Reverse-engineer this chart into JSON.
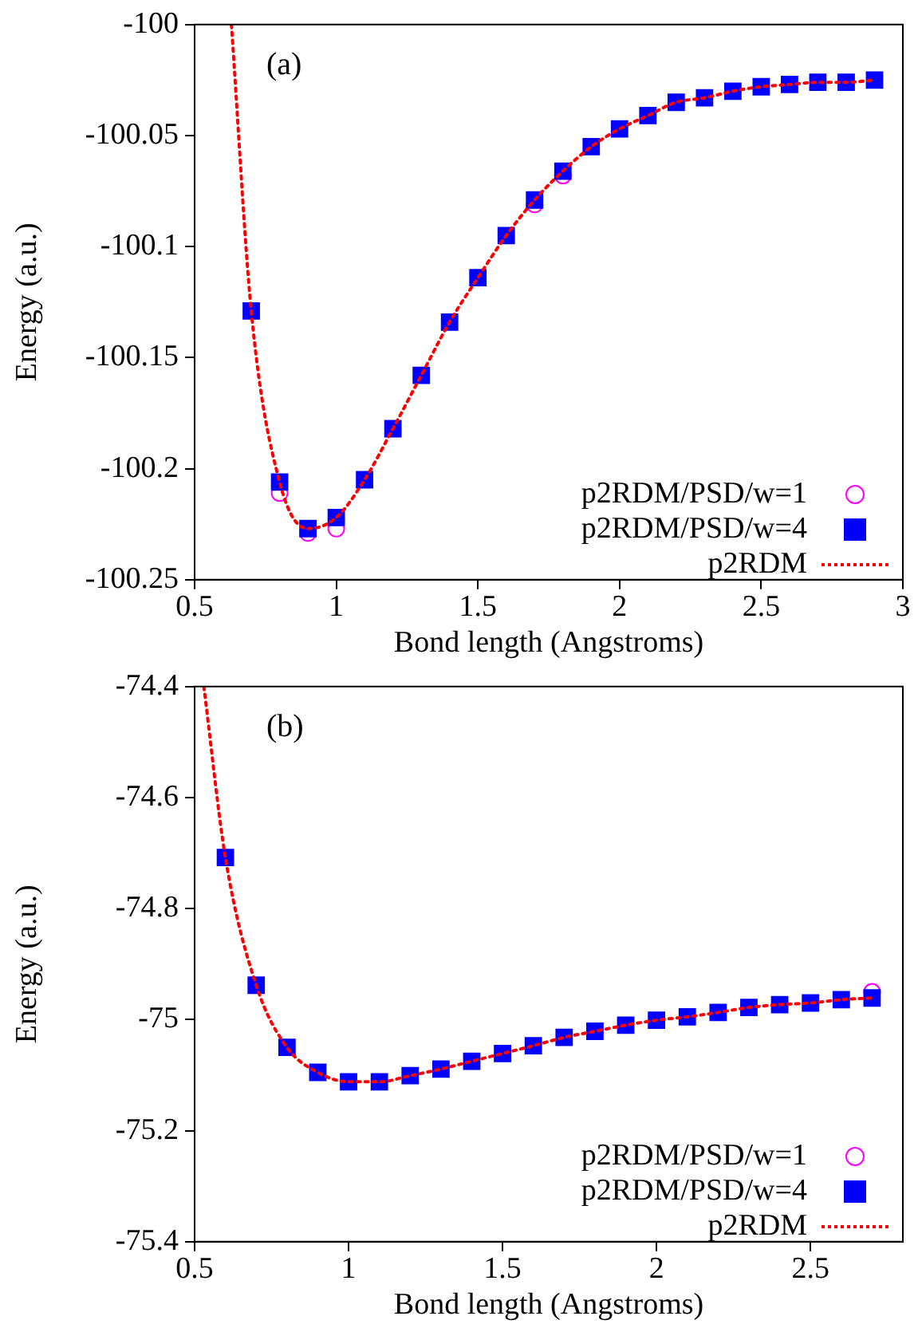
{
  "chart_data": [
    {
      "type": "scatter",
      "xlabel": "Bond length (Angstroms)",
      "ylabel": "Energy (a.u.)",
      "annotations": [
        "(a)"
      ],
      "legend": "bottom right",
      "grid": false,
      "xlim": [
        0.5,
        3
      ],
      "xticks": [
        0.5,
        1,
        1.5,
        2,
        2.5,
        3
      ],
      "ylim": [
        -100.25,
        -100
      ],
      "yticks": [
        -100.25,
        -100.2,
        -100.15,
        -100.1,
        -100.05,
        -100
      ],
      "x": [
        0.7,
        0.8,
        0.9,
        1.0,
        1.1,
        1.2,
        1.3,
        1.4,
        1.5,
        1.6,
        1.7,
        1.8,
        1.9,
        2.0,
        2.1,
        2.2,
        2.3,
        2.4,
        2.5,
        2.6,
        2.7,
        2.8,
        2.9
      ],
      "series": [
        {
          "name": "p2RDM/PSD/w=1",
          "type": "scatter",
          "marker": "circle",
          "color": "#ff00ff",
          "values": [
            null,
            -100.211,
            -100.229,
            -100.227,
            null,
            null,
            null,
            null,
            null,
            null,
            -100.081,
            -100.068,
            null,
            null,
            null,
            null,
            null,
            null,
            null,
            null,
            null,
            null,
            null
          ]
        },
        {
          "name": "p2RDM/PSD/w=4",
          "type": "scatter",
          "marker": "square",
          "color": "#0000ff",
          "values": [
            -100.129,
            -100.206,
            -100.227,
            -100.222,
            -100.205,
            -100.182,
            -100.158,
            -100.134,
            -100.114,
            -100.095,
            -100.079,
            -100.066,
            -100.055,
            -100.047,
            -100.041,
            -100.035,
            -100.033,
            -100.03,
            -100.028,
            -100.027,
            -100.026,
            -100.026,
            -100.025
          ]
        },
        {
          "name": "p2RDM",
          "type": "line",
          "marker": "none",
          "line_style": "dotted",
          "color": "#ff0000",
          "x": [
            0.63,
            0.7,
            0.8,
            0.9,
            1.0,
            1.1,
            1.2,
            1.3,
            1.4,
            1.5,
            1.6,
            1.7,
            1.8,
            1.9,
            2.0,
            2.1,
            2.2,
            2.3,
            2.4,
            2.5,
            2.6,
            2.7,
            2.8,
            2.9
          ],
          "values": [
            -100,
            -100.129,
            -100.206,
            -100.227,
            -100.222,
            -100.205,
            -100.182,
            -100.158,
            -100.134,
            -100.114,
            -100.095,
            -100.079,
            -100.066,
            -100.055,
            -100.047,
            -100.041,
            -100.035,
            -100.033,
            -100.03,
            -100.028,
            -100.027,
            -100.026,
            -100.026,
            -100.025
          ]
        }
      ]
    },
    {
      "type": "scatter",
      "xlabel": "Bond length (Angstroms)",
      "ylabel": "Energy (a.u.)",
      "annotations": [
        "(b)"
      ],
      "legend": "bottom right",
      "grid": false,
      "xlim": [
        0.5,
        2.8
      ],
      "xticks": [
        0.5,
        1,
        1.5,
        2,
        2.5
      ],
      "ylim": [
        -75.4,
        -74.4
      ],
      "yticks": [
        -75.4,
        -75.2,
        -75,
        -74.8,
        -74.6,
        -74.4
      ],
      "x": [
        0.6,
        0.7,
        0.8,
        0.9,
        1.0,
        1.1,
        1.2,
        1.3,
        1.4,
        1.5,
        1.6,
        1.7,
        1.8,
        1.9,
        2.0,
        2.1,
        2.2,
        2.3,
        2.4,
        2.5,
        2.6,
        2.7
      ],
      "series": [
        {
          "name": "p2RDM/PSD/w=1",
          "type": "scatter",
          "marker": "circle",
          "color": "#ff00ff",
          "values": [
            null,
            null,
            null,
            null,
            null,
            null,
            null,
            null,
            null,
            null,
            null,
            null,
            null,
            null,
            null,
            null,
            null,
            null,
            null,
            null,
            null,
            -74.95
          ]
        },
        {
          "name": "p2RDM/PSD/w=4",
          "type": "scatter",
          "marker": "square",
          "color": "#0000ff",
          "values": [
            -74.708,
            -74.938,
            -75.05,
            -75.095,
            -75.112,
            -75.112,
            -75.101,
            -75.089,
            -75.075,
            -75.061,
            -75.047,
            -75.032,
            -75.021,
            -75.01,
            -75.001,
            -74.995,
            -74.987,
            -74.978,
            -74.973,
            -74.97,
            -74.964,
            -74.961
          ]
        },
        {
          "name": "p2RDM",
          "type": "line",
          "marker": "none",
          "line_style": "dotted",
          "color": "#ff0000",
          "x": [
            0.53,
            0.6,
            0.7,
            0.8,
            0.9,
            1.0,
            1.1,
            1.2,
            1.3,
            1.4,
            1.5,
            1.6,
            1.7,
            1.8,
            1.9,
            2.0,
            2.1,
            2.2,
            2.3,
            2.4,
            2.5,
            2.6,
            2.7
          ],
          "values": [
            -74.4,
            -74.708,
            -74.938,
            -75.05,
            -75.095,
            -75.112,
            -75.112,
            -75.101,
            -75.089,
            -75.075,
            -75.061,
            -75.047,
            -75.032,
            -75.021,
            -75.01,
            -75.001,
            -74.995,
            -74.987,
            -74.978,
            -74.973,
            -74.97,
            -74.964,
            -74.961
          ]
        }
      ]
    }
  ]
}
